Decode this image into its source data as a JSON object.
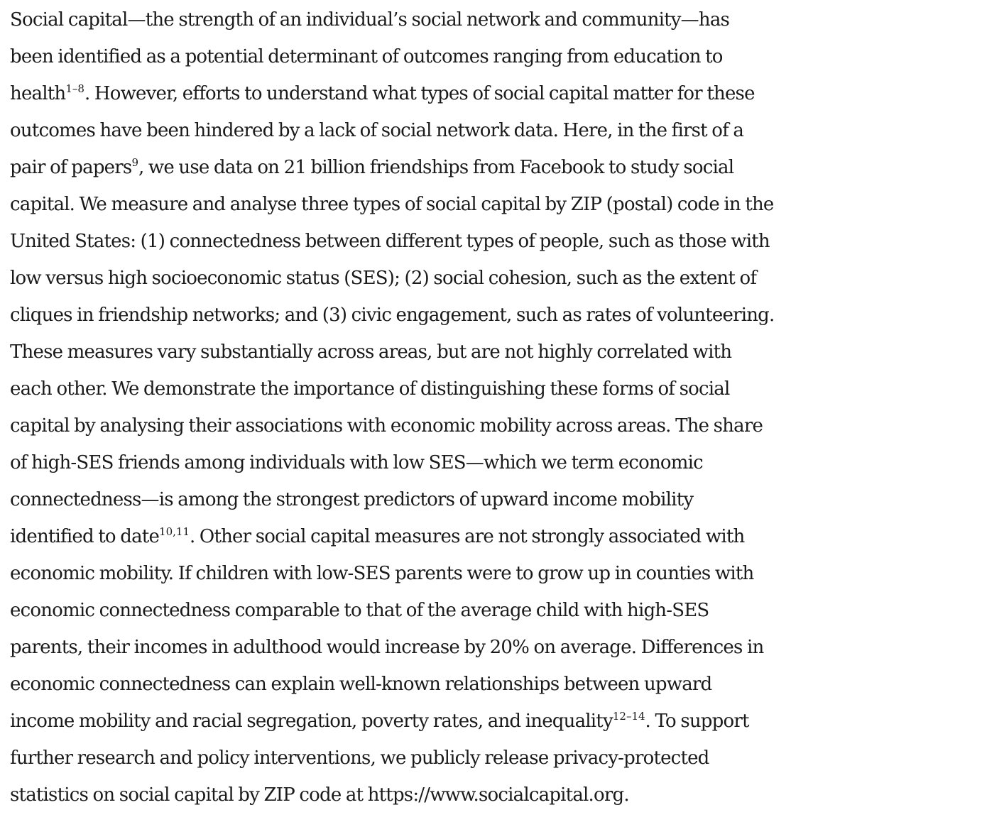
{
  "abstract": {
    "lines": [
      [
        "Social capital—the strength of an individual’s social network and community—has"
      ],
      [
        "been identified as a potential determinant of outcomes ranging from education to"
      ],
      [
        "health",
        "1–8",
        ". However, efforts to understand what types of social capital matter for these"
      ],
      [
        "outcomes have been hindered by a lack of social network data. Here, in the first of a"
      ],
      [
        "pair of papers",
        "9",
        ", we use data on 21 billion friendships from Facebook to study social"
      ],
      [
        "capital. We measure and analyse three types of social capital by ZIP (postal) code in the"
      ],
      [
        "United States: (1) connectedness between different types of people, such as those with"
      ],
      [
        "low versus high socioeconomic status (SES); (2) social cohesion, such as the extent of"
      ],
      [
        "cliques in friendship networks; and (3) civic engagement, such as rates of volunteering."
      ],
      [
        "These measures vary substantially across areas, but are not highly correlated with"
      ],
      [
        "each other. We demonstrate the importance of distinguishing these forms of social"
      ],
      [
        "capital by analysing their associations with economic mobility across areas. The share"
      ],
      [
        "of high-SES friends among individuals with low SES—which we term economic"
      ],
      [
        "connectedness—is among the strongest predictors of upward income mobility"
      ],
      [
        "identified to date",
        "10,11",
        ". Other social capital measures are not strongly associated with"
      ],
      [
        "economic mobility. If children with low-SES parents were to grow up in counties with"
      ],
      [
        "economic connectedness comparable to that of the average child with high-SES"
      ],
      [
        "parents, their incomes in adulthood would increase by 20% on average. Differences in"
      ],
      [
        "economic connectedness can explain well-known relationships between upward"
      ],
      [
        "income mobility and racial segregation, poverty rates, and inequality",
        "12–14",
        ". To support"
      ],
      [
        "further research and policy interventions, we publicly release privacy-protected"
      ],
      [
        "statistics on social capital by ZIP code at https://www.socialcapital.org."
      ]
    ]
  }
}
